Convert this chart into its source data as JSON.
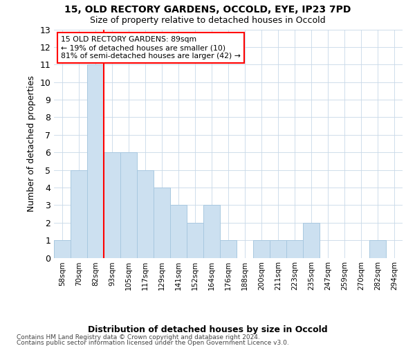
{
  "title1": "15, OLD RECTORY GARDENS, OCCOLD, EYE, IP23 7PD",
  "title2": "Size of property relative to detached houses in Occold",
  "xlabel": "Distribution of detached houses by size in Occold",
  "ylabel": "Number of detached properties",
  "bar_labels": [
    "58sqm",
    "70sqm",
    "82sqm",
    "93sqm",
    "105sqm",
    "117sqm",
    "129sqm",
    "141sqm",
    "152sqm",
    "164sqm",
    "176sqm",
    "188sqm",
    "200sqm",
    "211sqm",
    "223sqm",
    "235sqm",
    "247sqm",
    "259sqm",
    "270sqm",
    "282sqm",
    "294sqm"
  ],
  "bar_values": [
    1,
    5,
    11,
    6,
    6,
    5,
    4,
    3,
    2,
    3,
    1,
    0,
    1,
    1,
    1,
    2,
    0,
    0,
    0,
    1,
    0
  ],
  "bar_color": "#cce0f0",
  "bar_edge_color": "#a8c8e0",
  "red_line_x": 2.5,
  "annotation_line1": "15 OLD RECTORY GARDENS: 89sqm",
  "annotation_line2": "← 19% of detached houses are smaller (10)",
  "annotation_line3": "81% of semi-detached houses are larger (42) →",
  "ylim": [
    0,
    13
  ],
  "yticks": [
    0,
    1,
    2,
    3,
    4,
    5,
    6,
    7,
    8,
    9,
    10,
    11,
    12,
    13
  ],
  "grid_color": "#c8d8e8",
  "footer1": "Contains HM Land Registry data © Crown copyright and database right 2024.",
  "footer2": "Contains public sector information licensed under the Open Government Licence v3.0."
}
